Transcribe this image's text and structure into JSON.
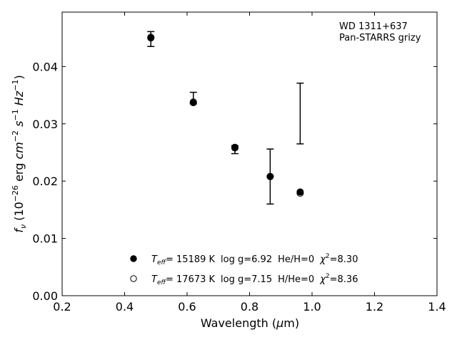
{
  "chart_data": {
    "type": "scatter",
    "xlabel": "Wavelength (μm)",
    "ylabel": "f_ν (10^-26 erg cm^-2 s^-1 Hz^-1)",
    "xlim": [
      0.2,
      1.4
    ],
    "ylim": [
      0.0,
      0.0495
    ],
    "xticks": [
      "0.2",
      "0.4",
      "0.6",
      "0.8",
      "1.0",
      "1.2",
      "1.4"
    ],
    "yticks": [
      "0.00",
      "0.01",
      "0.02",
      "0.03",
      "0.04"
    ],
    "grid": false,
    "annotation": [
      "WD 1311+637",
      "Pan-STARRS grizy"
    ],
    "observed": {
      "x": [
        0.484,
        0.62,
        0.753,
        0.866,
        0.962
      ],
      "y": [
        0.0448,
        0.0345,
        0.0255,
        0.0208,
        0.0318
      ],
      "yerr": [
        0.0013,
        0.001,
        0.0007,
        0.0048,
        0.0053
      ]
    },
    "series": [
      {
        "legend": "T_eff= 15189 K  log g=6.92  He/H=0  χ²=8.30",
        "marker": "filled-circle",
        "x": [
          0.484,
          0.62,
          0.753,
          0.866,
          0.962
        ],
        "y": [
          0.0451,
          0.0338,
          0.0259,
          0.0208,
          0.0181
        ]
      },
      {
        "legend": "T_eff= 17673 K  log g=7.15  H/He=0  χ²=8.36",
        "marker": "open-circle",
        "x": [
          0.484,
          0.62,
          0.753,
          0.866,
          0.962
        ],
        "y": [
          0.045,
          0.0337,
          0.0258,
          0.0208,
          0.0179
        ]
      }
    ],
    "legend": {
      "placement": "lower-center",
      "entries": [
        {
          "teff_label": "T",
          "teff_sub": "eff",
          "teff_val": "= 15189 K",
          "logg": "log g=6.92",
          "comp": "He/H=0",
          "chi_label": "χ",
          "chi_sup": "2",
          "chi_val": "=8.30"
        },
        {
          "teff_label": "T",
          "teff_sub": "eff",
          "teff_val": "= 17673 K",
          "logg": "log g=7.15",
          "comp": "H/He=0",
          "chi_label": "χ",
          "chi_sup": "2",
          "chi_val": "=8.36"
        }
      ]
    }
  }
}
